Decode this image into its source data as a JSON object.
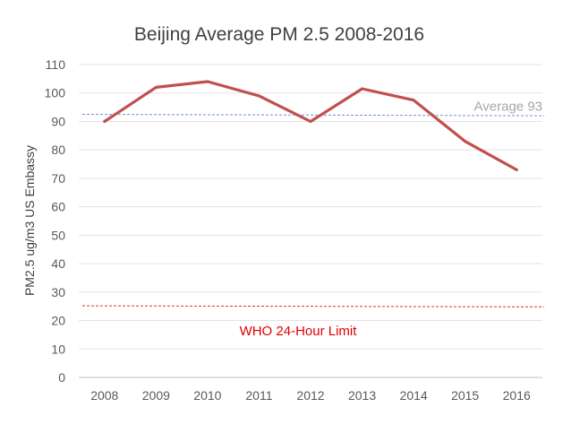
{
  "chart_data": {
    "type": "line",
    "title": "Beijing Average PM 2.5 2008-2016",
    "xlabel": "",
    "ylabel": "PM2.5 ug/m3 US Embassy",
    "categories": [
      "2008",
      "2009",
      "2010",
      "2011",
      "2012",
      "2013",
      "2014",
      "2015",
      "2016"
    ],
    "series": [
      {
        "values": [
          90,
          102,
          104,
          99,
          90,
          101.5,
          97.5,
          83,
          73
        ],
        "color": "#C0504D"
      }
    ],
    "yticks": [
      "0",
      "10",
      "20",
      "30",
      "40",
      "50",
      "60",
      "70",
      "80",
      "90",
      "100",
      "110"
    ],
    "ylim": [
      0,
      110
    ],
    "grid": true,
    "reference_lines": [
      {
        "label": "Average 93",
        "start": 92.5,
        "end": 92,
        "color": "#6F8FD6",
        "label_color": "#A6A6A6"
      },
      {
        "label": "WHO 24-Hour Limit",
        "start": 25.2,
        "end": 24.8,
        "color": "#E0302E",
        "label_color": "#E00000"
      }
    ]
  }
}
